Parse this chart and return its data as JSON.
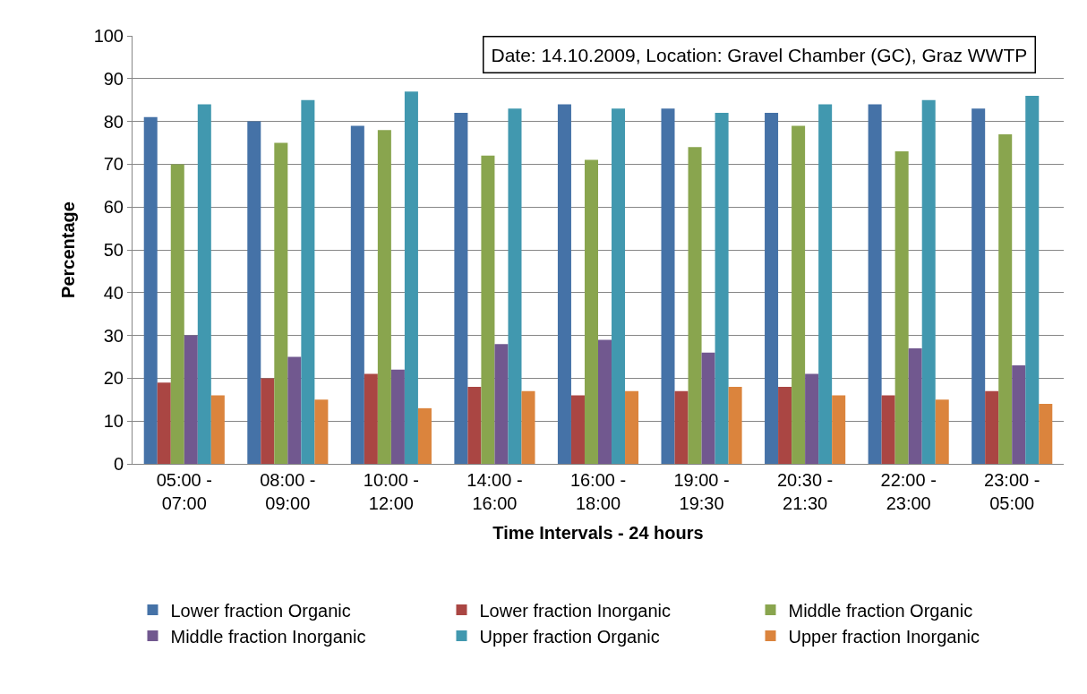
{
  "chart_data": {
    "type": "bar",
    "xlabel": "Time Intervals - 24 hours",
    "ylabel": "Percentage",
    "categories": [
      "05:00 -\n07:00",
      "08:00 -\n09:00",
      "10:00 -\n12:00",
      "14:00 -\n16:00",
      "16:00 -\n18:00",
      "19:00 -\n19:30",
      "20:30 -\n21:30",
      "22:00 -\n23:00",
      "23:00 -\n05:00"
    ],
    "series": [
      {
        "name": "Lower fraction Organic",
        "color": "#4572a7",
        "values": [
          81,
          80,
          79,
          82,
          84,
          83,
          82,
          84,
          83
        ]
      },
      {
        "name": "Lower fraction Inorganic",
        "color": "#aa4643",
        "values": [
          19,
          20,
          21,
          18,
          16,
          17,
          18,
          16,
          17
        ]
      },
      {
        "name": "Middle fraction Organic",
        "color": "#89a54e",
        "values": [
          70,
          75,
          78,
          72,
          71,
          74,
          79,
          73,
          77
        ]
      },
      {
        "name": "Middle fraction Inorganic",
        "color": "#71588f",
        "values": [
          30,
          25,
          22,
          28,
          29,
          26,
          21,
          27,
          23
        ]
      },
      {
        "name": "Upper fraction Organic",
        "color": "#4198af",
        "values": [
          84,
          85,
          87,
          83,
          83,
          82,
          84,
          85,
          86
        ]
      },
      {
        "name": "Upper fraction Inorganic",
        "color": "#db843d",
        "values": [
          16,
          15,
          13,
          17,
          17,
          18,
          16,
          15,
          14
        ]
      }
    ],
    "ylim": [
      0,
      100
    ],
    "yticks": [
      0,
      10,
      20,
      30,
      40,
      50,
      60,
      70,
      80,
      90,
      100
    ],
    "grid": "y",
    "legend": "bottom",
    "annotations": [
      "Date: 14.10.2009, Location: Gravel Chamber (GC), Graz WWTP"
    ]
  }
}
